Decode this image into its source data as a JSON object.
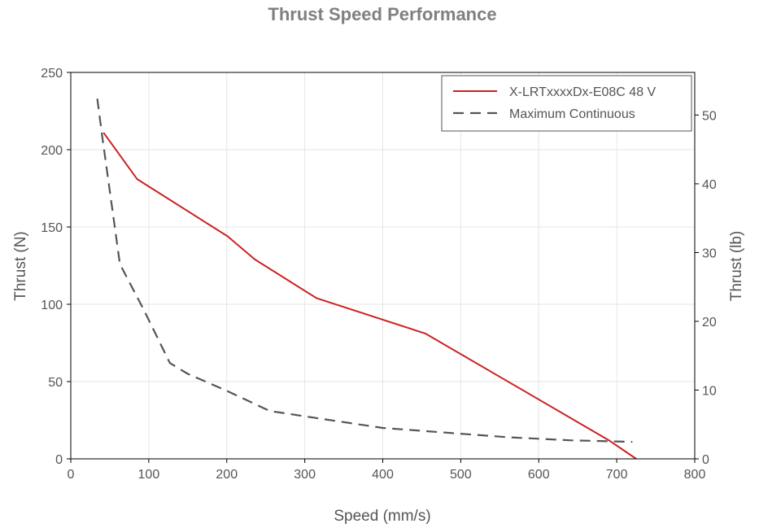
{
  "chart_data": {
    "type": "line",
    "title": "Thrust Speed Performance",
    "xlabel": "Speed (mm/s)",
    "ylabel": "Thrust (N)",
    "y2label": "Thrust (lb)",
    "xlim": [
      0,
      800
    ],
    "ylim": [
      0,
      250
    ],
    "y2lim": [
      0,
      56.2
    ],
    "x_ticks": [
      0,
      100,
      200,
      300,
      400,
      500,
      600,
      700,
      800
    ],
    "y_ticks": [
      0,
      50,
      100,
      150,
      200,
      250
    ],
    "y2_ticks": [
      0,
      10,
      20,
      30,
      40,
      50
    ],
    "grid": true,
    "legend_position": "top-right",
    "series": [
      {
        "name": "X-LRTxxxxDx-E08C 48 V",
        "style": "solid",
        "color": "#cc2222",
        "x": [
          42,
          85,
          201,
          236,
          315,
          455,
          690,
          725
        ],
        "y": [
          211,
          181,
          144,
          129,
          104,
          81,
          12,
          0
        ]
      },
      {
        "name": "Maximum Continuous",
        "style": "dashed",
        "color": "#555555",
        "x": [
          34,
          40,
          63,
          93,
          127,
          150,
          200,
          255,
          320,
          400,
          480,
          560,
          640,
          720
        ],
        "y": [
          233,
          210,
          126,
          97,
          62,
          55,
          44,
          31,
          26,
          20,
          17,
          14,
          12,
          11
        ]
      }
    ]
  }
}
